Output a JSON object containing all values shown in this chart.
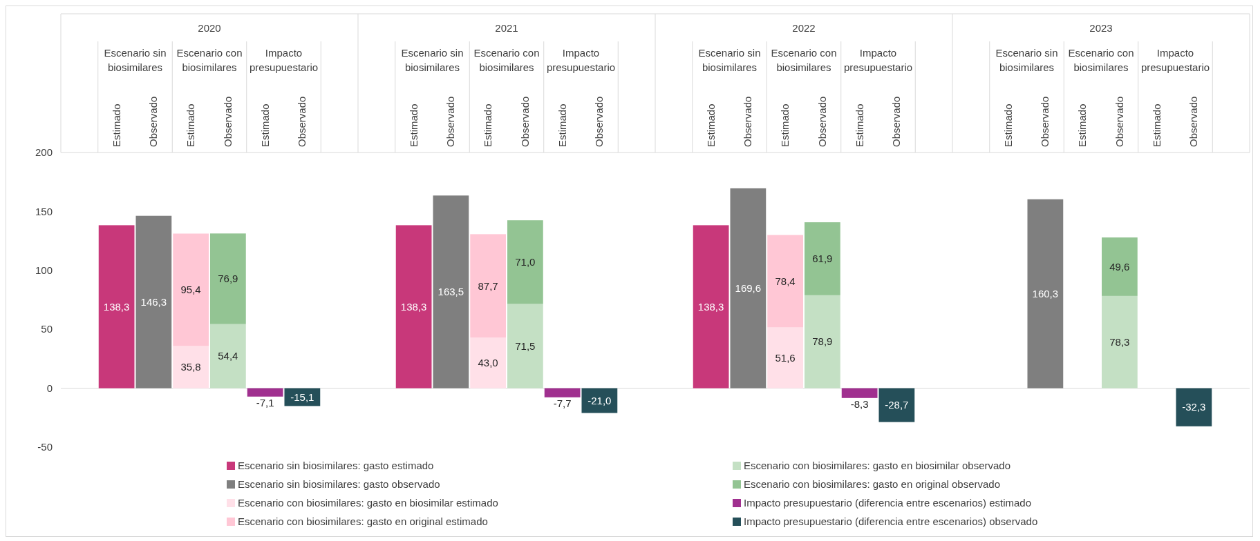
{
  "chart_data": {
    "type": "bar",
    "stacked": true,
    "legend": "bottom",
    "categories": [
      null,
      "Estimado",
      "Observado",
      "Estimado",
      "Observado",
      "Estimado",
      "Observado",
      null,
      null,
      "Estimado",
      "Observado",
      "Estimado",
      "Observado",
      "Estimado",
      "Observado",
      null,
      null,
      "Estimado",
      "Observado",
      "Estimado",
      "Observado",
      "Estimado",
      "Observado",
      null,
      null,
      "Estimado",
      "Observado",
      "Estimado",
      "Observado",
      "Estimado",
      "Observado",
      null
    ],
    "annotations": [
      "2020",
      "2021",
      "2022",
      "2023",
      "Escenario sin biosimilares",
      "Escenario con biosimilares",
      "Impacto presupuestario",
      "Escenario sin biosimilares",
      "Escenario con biosimilares",
      "Impacto presupuestario",
      "Escenario sin biosimilares",
      "Escenario con biosimilares",
      "Impacto presupuestario",
      "Escenario sin biosimilares",
      "Escenario con biosimilares",
      "Impacto presupuestario"
    ],
    "ylim": [
      -50,
      200
    ],
    "yticks": [
      -50,
      0,
      50,
      100,
      150,
      200
    ],
    "series": [
      {
        "name": "Escenario sin biosimilares: gasto estimado",
        "color": "#c8387a",
        "values": [
          null,
          138.3,
          null,
          null,
          null,
          null,
          null,
          null,
          null,
          138.3,
          null,
          null,
          null,
          null,
          null,
          null,
          null,
          138.3,
          null,
          null,
          null,
          null,
          null,
          null,
          null,
          null,
          null,
          null,
          null,
          null,
          null,
          null
        ],
        "value_labels": [
          null,
          "138,3",
          null,
          null,
          null,
          null,
          null,
          null,
          null,
          "138,3",
          null,
          null,
          null,
          null,
          null,
          null,
          null,
          "138,3",
          null,
          null,
          null,
          null,
          null,
          null,
          null,
          null,
          null,
          null,
          null,
          null,
          null,
          null
        ]
      },
      {
        "name": "Escenario sin biosimilares: gasto observado",
        "color": "#7f7f7f",
        "values": [
          null,
          null,
          146.3,
          null,
          null,
          null,
          null,
          null,
          null,
          null,
          163.5,
          null,
          null,
          null,
          null,
          null,
          null,
          null,
          169.6,
          null,
          null,
          null,
          null,
          null,
          null,
          null,
          160.3,
          null,
          null,
          null,
          null,
          null
        ],
        "value_labels": [
          null,
          null,
          "146,3",
          null,
          null,
          null,
          null,
          null,
          null,
          null,
          "163,5",
          null,
          null,
          null,
          null,
          null,
          null,
          null,
          "169,6",
          null,
          null,
          null,
          null,
          null,
          null,
          null,
          "160,3",
          null,
          null,
          null,
          null,
          null
        ]
      },
      {
        "name": "Escenario con biosimilares: gasto en biosimilar estimado",
        "color": "#ffe0e8",
        "values": [
          null,
          null,
          null,
          35.8,
          null,
          null,
          null,
          null,
          null,
          null,
          null,
          43.0,
          null,
          null,
          null,
          null,
          null,
          null,
          null,
          51.6,
          null,
          null,
          null,
          null,
          null,
          null,
          null,
          null,
          null,
          null,
          null,
          null
        ],
        "value_labels": [
          null,
          null,
          null,
          "35,8",
          null,
          null,
          null,
          null,
          null,
          null,
          null,
          "43,0",
          null,
          null,
          null,
          null,
          null,
          null,
          null,
          "51,6",
          null,
          null,
          null,
          null,
          null,
          null,
          null,
          null,
          null,
          null,
          null,
          null
        ]
      },
      {
        "name": "Escenario con biosimilares: gasto en original estimado",
        "color": "#ffc7d5",
        "values": [
          null,
          null,
          null,
          95.4,
          null,
          null,
          null,
          null,
          null,
          null,
          null,
          87.7,
          null,
          null,
          null,
          null,
          null,
          null,
          null,
          78.4,
          null,
          null,
          null,
          null,
          null,
          null,
          null,
          null,
          null,
          null,
          null,
          null
        ],
        "value_labels": [
          null,
          null,
          null,
          "95,4",
          null,
          null,
          null,
          null,
          null,
          null,
          null,
          "87,7",
          null,
          null,
          null,
          null,
          null,
          null,
          null,
          "78,4",
          null,
          null,
          null,
          null,
          null,
          null,
          null,
          null,
          null,
          null,
          null,
          null
        ]
      },
      {
        "name": "Escenario con biosimilares: gasto en biosimilar observado",
        "color": "#c4e0c4",
        "values": [
          null,
          null,
          null,
          null,
          54.4,
          null,
          null,
          null,
          null,
          null,
          null,
          null,
          71.5,
          null,
          null,
          null,
          null,
          null,
          null,
          null,
          78.9,
          null,
          null,
          null,
          null,
          null,
          null,
          null,
          78.3,
          null,
          null,
          null
        ],
        "value_labels": [
          null,
          null,
          null,
          null,
          "54,4",
          null,
          null,
          null,
          null,
          null,
          null,
          null,
          "71,5",
          null,
          null,
          null,
          null,
          null,
          null,
          null,
          "78,9",
          null,
          null,
          null,
          null,
          null,
          null,
          null,
          "78,3",
          null,
          null,
          null
        ]
      },
      {
        "name": "Escenario con biosimilares: gasto en original observado",
        "color": "#93c493",
        "values": [
          null,
          null,
          null,
          null,
          76.9,
          null,
          null,
          null,
          null,
          null,
          null,
          null,
          71.0,
          null,
          null,
          null,
          null,
          null,
          null,
          null,
          61.9,
          null,
          null,
          null,
          null,
          null,
          null,
          null,
          49.6,
          null,
          null,
          null
        ],
        "value_labels": [
          null,
          null,
          null,
          null,
          "76,9",
          null,
          null,
          null,
          null,
          null,
          null,
          null,
          "71,0",
          null,
          null,
          null,
          null,
          null,
          null,
          null,
          "61,9",
          null,
          null,
          null,
          null,
          null,
          null,
          null,
          "49,6",
          null,
          null,
          null
        ]
      },
      {
        "name": "Impacto presupuestario (diferencia entre escenarios) estimado",
        "color": "#a0308f",
        "values": [
          null,
          null,
          null,
          null,
          null,
          -7.1,
          null,
          null,
          null,
          null,
          null,
          null,
          null,
          -7.7,
          null,
          null,
          null,
          null,
          null,
          null,
          null,
          -8.3,
          null,
          null,
          null,
          null,
          null,
          null,
          null,
          null,
          null,
          null
        ],
        "value_labels": [
          null,
          null,
          null,
          null,
          null,
          "-7,1",
          null,
          null,
          null,
          null,
          null,
          null,
          null,
          "-7,7",
          null,
          null,
          null,
          null,
          null,
          null,
          null,
          "-8,3",
          null,
          null,
          null,
          null,
          null,
          null,
          null,
          null,
          null,
          null
        ]
      },
      {
        "name": "Impacto presupuestario (diferencia entre escenarios) observado",
        "color": "#254f59",
        "values": [
          null,
          null,
          null,
          null,
          null,
          null,
          -15.1,
          null,
          null,
          null,
          null,
          null,
          null,
          null,
          -21.0,
          null,
          null,
          null,
          null,
          null,
          null,
          null,
          -28.7,
          null,
          null,
          null,
          null,
          null,
          null,
          null,
          -32.3,
          null
        ],
        "value_labels": [
          null,
          null,
          null,
          null,
          null,
          null,
          "-15,1",
          null,
          null,
          null,
          null,
          null,
          null,
          null,
          "-21,0",
          null,
          null,
          null,
          null,
          null,
          null,
          null,
          "-28,7",
          null,
          null,
          null,
          null,
          null,
          null,
          null,
          "-32,3",
          null
        ]
      }
    ]
  }
}
